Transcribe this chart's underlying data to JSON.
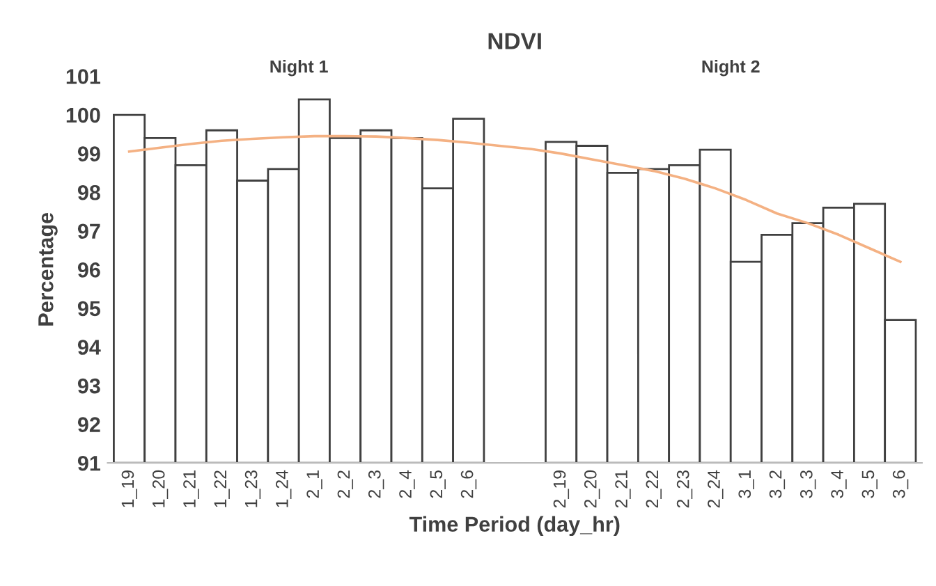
{
  "chart_data": {
    "type": "bar",
    "title": "NDVI",
    "xlabel": "Time Period (day_hr)",
    "ylabel": "Percentage",
    "categories": [
      "1_19",
      "1_20",
      "1_21",
      "1_22",
      "1_23",
      "1_24",
      "2_1",
      "2_2",
      "2_3",
      "2_4",
      "2_5",
      "2_6",
      null,
      null,
      "2_19",
      "2_20",
      "2_21",
      "2_22",
      "2_23",
      "2_24",
      "3_1",
      "3_2",
      "3_3",
      "3_4",
      "3_5",
      "3_6"
    ],
    "series": [
      {
        "color": "#ffffff",
        "values": [
          100.0,
          99.4,
          98.7,
          99.6,
          98.3,
          98.6,
          100.4,
          99.4,
          99.6,
          99.4,
          98.1,
          99.9,
          null,
          null,
          99.3,
          99.2,
          98.5,
          98.6,
          98.7,
          99.1,
          96.2,
          96.9,
          97.2,
          97.6,
          97.7,
          94.7
        ]
      },
      {
        "type": "line",
        "color": "#f4b183",
        "values": [
          99.05,
          99.15,
          99.25,
          99.33,
          99.38,
          99.42,
          99.45,
          99.45,
          99.44,
          99.4,
          99.35,
          99.28,
          99.2,
          99.12,
          99.0,
          98.85,
          98.7,
          98.55,
          98.35,
          98.1,
          97.8,
          97.45,
          97.2,
          96.9,
          96.55,
          96.2
        ]
      }
    ],
    "annotations": [
      "Night 1",
      "Night 2"
    ],
    "ylim": [
      91,
      101
    ],
    "yticks": [
      91,
      92,
      93,
      94,
      95,
      96,
      97,
      98,
      99,
      100,
      101
    ],
    "grid": false,
    "legend": false
  }
}
